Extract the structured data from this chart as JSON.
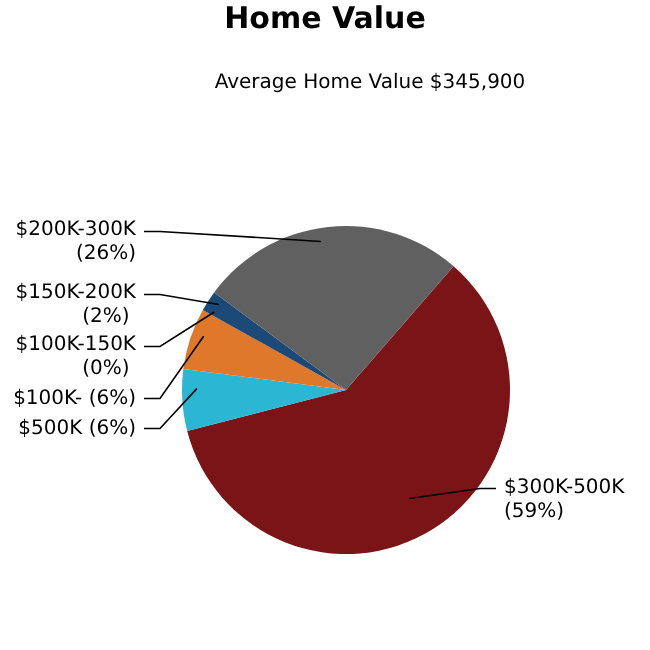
{
  "chart_data": {
    "type": "pie",
    "title": "Home Value",
    "subtitle": "Average Home Value  $345,900",
    "categories": [
      "$300K-500K",
      "$500K",
      "$100K-",
      "$100K-150K",
      "$150K-200K",
      "$200K-300K"
    ],
    "values": [
      59,
      6,
      6,
      0,
      2,
      26
    ],
    "value_labels": [
      "(59%)",
      "(6%)",
      "(6%)",
      "(0%)",
      "(2%)",
      "(26%)"
    ],
    "colors": [
      "#7b1416",
      "#2bb7d4",
      "#e0782c",
      "#3a6ea5",
      "#1b4a78",
      "#606060"
    ]
  }
}
